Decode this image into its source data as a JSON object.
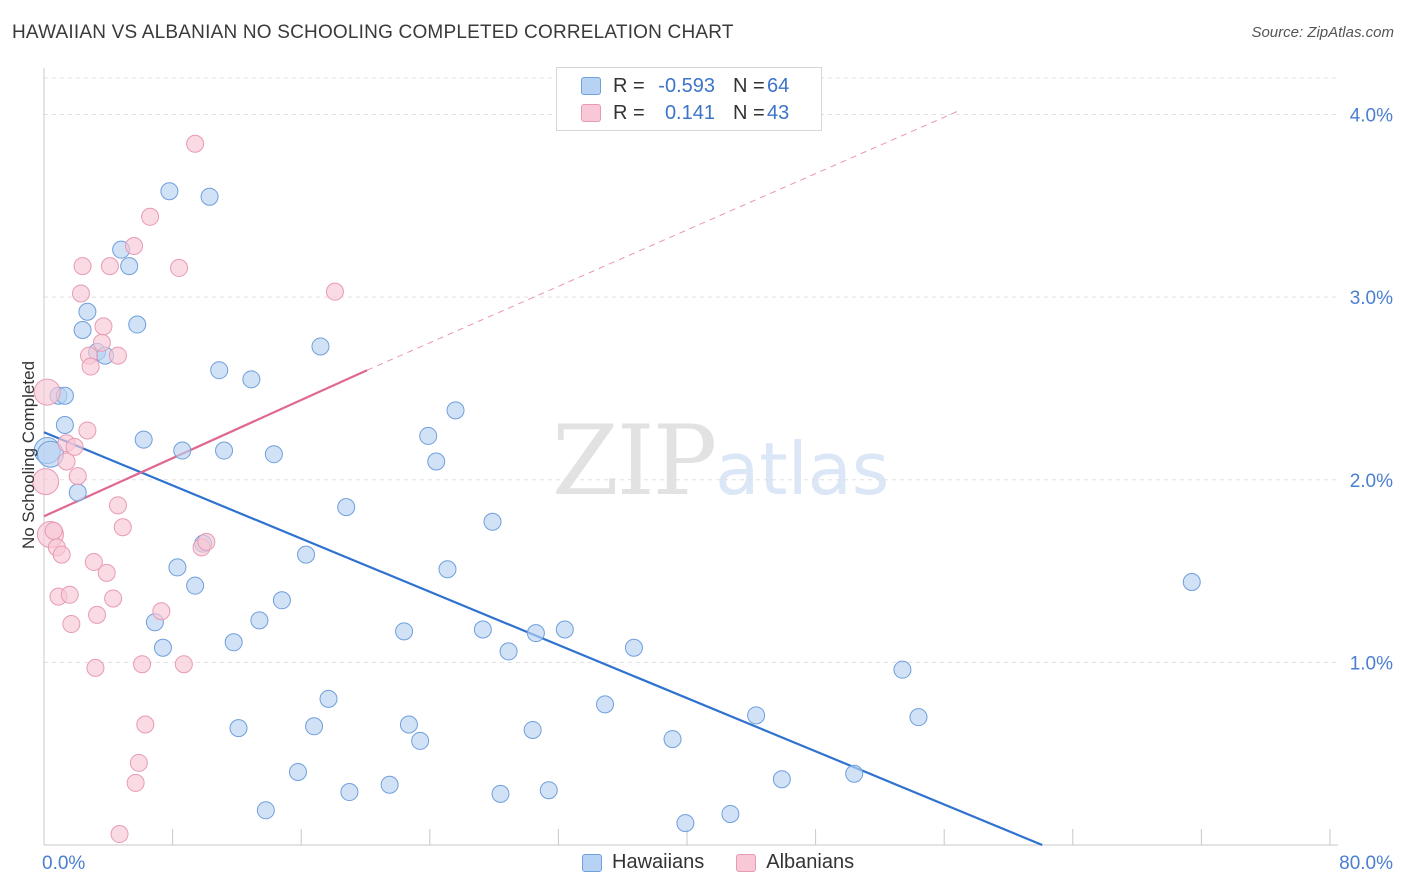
{
  "title": "HAWAIIAN VS ALBANIAN NO SCHOOLING COMPLETED CORRELATION CHART",
  "source": "Source: ZipAtlas.com",
  "watermark": {
    "zip": "ZIP",
    "atlas": "atlas"
  },
  "colors": {
    "hawaiians_fill": "#b8d2f3",
    "hawaiians_stroke": "#6f9fdc",
    "hawaiians_line": "#2f72d0",
    "albanians_fill": "#f8c8d6",
    "albanians_stroke": "#e89ab4",
    "albanians_line": "#e06890",
    "tick_label": "#4a7fd0",
    "grid": "#e0e0e0"
  },
  "legend": {
    "rows": [
      {
        "r_label": "R =",
        "r_value": "-0.593",
        "n_label": "N =",
        "n_value": "64"
      },
      {
        "r_label": "R =",
        "r_value": "0.141",
        "n_label": "N =",
        "n_value": "43"
      }
    ]
  },
  "bottom_legend": [
    "Hawaiians",
    "Albanians"
  ],
  "chart_data": {
    "type": "scatter",
    "xlabel": "",
    "ylabel": "No Schooling Completed",
    "xlim": [
      0,
      80
    ],
    "ylim": [
      0,
      4.2
    ],
    "x_tick_labels": [
      "0.0%",
      "80.0%"
    ],
    "y_ticks": [
      1.0,
      2.0,
      3.0,
      4.0
    ],
    "y_tick_labels": [
      "1.0%",
      "2.0%",
      "3.0%",
      "4.0%"
    ],
    "grid": true,
    "series": [
      {
        "name": "Hawaiians",
        "points": [
          [
            0.2,
            2.16
          ],
          [
            0.4,
            2.14
          ],
          [
            0.9,
            2.46
          ],
          [
            1.3,
            2.46
          ],
          [
            1.3,
            2.3
          ],
          [
            2.1,
            1.93
          ],
          [
            2.4,
            2.82
          ],
          [
            2.7,
            2.92
          ],
          [
            3.3,
            2.7
          ],
          [
            3.8,
            2.68
          ],
          [
            4.8,
            3.26
          ],
          [
            5.3,
            3.17
          ],
          [
            5.8,
            2.85
          ],
          [
            6.2,
            2.22
          ],
          [
            6.9,
            1.22
          ],
          [
            7.4,
            1.08
          ],
          [
            7.8,
            3.58
          ],
          [
            8.3,
            1.52
          ],
          [
            8.6,
            2.16
          ],
          [
            9.4,
            1.42
          ],
          [
            9.9,
            1.65
          ],
          [
            10.3,
            3.55
          ],
          [
            10.9,
            2.6
          ],
          [
            11.2,
            2.16
          ],
          [
            11.8,
            1.11
          ],
          [
            12.1,
            0.64
          ],
          [
            12.9,
            2.55
          ],
          [
            13.4,
            1.23
          ],
          [
            13.8,
            0.19
          ],
          [
            14.3,
            2.14
          ],
          [
            14.8,
            1.34
          ],
          [
            15.8,
            0.4
          ],
          [
            16.3,
            1.59
          ],
          [
            16.8,
            0.65
          ],
          [
            17.2,
            2.73
          ],
          [
            17.7,
            0.8
          ],
          [
            18.8,
            1.85
          ],
          [
            19.0,
            0.29
          ],
          [
            21.5,
            0.33
          ],
          [
            22.4,
            1.17
          ],
          [
            22.7,
            0.66
          ],
          [
            23.4,
            0.57
          ],
          [
            23.9,
            2.24
          ],
          [
            24.4,
            2.1
          ],
          [
            25.1,
            1.51
          ],
          [
            25.6,
            2.38
          ],
          [
            27.3,
            1.18
          ],
          [
            27.9,
            1.77
          ],
          [
            28.4,
            0.28
          ],
          [
            28.9,
            1.06
          ],
          [
            30.4,
            0.63
          ],
          [
            30.6,
            1.16
          ],
          [
            31.4,
            0.3
          ],
          [
            32.4,
            1.18
          ],
          [
            34.9,
            0.77
          ],
          [
            36.7,
            1.08
          ],
          [
            39.1,
            0.58
          ],
          [
            39.9,
            0.12
          ],
          [
            42.7,
            0.17
          ],
          [
            44.3,
            0.71
          ],
          [
            45.9,
            0.36
          ],
          [
            50.4,
            0.39
          ],
          [
            53.4,
            0.96
          ],
          [
            54.4,
            0.7
          ],
          [
            71.4,
            1.44
          ]
        ],
        "trend": {
          "x": [
            0,
            62.1
          ],
          "y": [
            2.26,
            0.0
          ]
        }
      },
      {
        "name": "Albanians",
        "points": [
          [
            0.1,
            1.99
          ],
          [
            0.2,
            2.48
          ],
          [
            0.4,
            1.7
          ],
          [
            0.6,
            1.72
          ],
          [
            0.8,
            1.63
          ],
          [
            0.9,
            1.36
          ],
          [
            1.1,
            1.59
          ],
          [
            1.4,
            2.2
          ],
          [
            1.4,
            2.1
          ],
          [
            1.6,
            1.37
          ],
          [
            1.7,
            1.21
          ],
          [
            1.9,
            2.18
          ],
          [
            2.1,
            2.02
          ],
          [
            2.3,
            3.02
          ],
          [
            2.4,
            3.17
          ],
          [
            2.7,
            2.27
          ],
          [
            2.8,
            2.68
          ],
          [
            2.9,
            2.62
          ],
          [
            3.1,
            1.55
          ],
          [
            3.2,
            0.97
          ],
          [
            3.3,
            1.26
          ],
          [
            3.6,
            2.75
          ],
          [
            3.7,
            2.84
          ],
          [
            3.9,
            1.49
          ],
          [
            4.1,
            3.17
          ],
          [
            4.3,
            1.35
          ],
          [
            4.6,
            1.86
          ],
          [
            4.6,
            2.68
          ],
          [
            4.7,
            0.06
          ],
          [
            4.9,
            1.74
          ],
          [
            5.6,
            3.28
          ],
          [
            5.7,
            0.34
          ],
          [
            5.9,
            0.45
          ],
          [
            6.1,
            0.99
          ],
          [
            6.3,
            0.66
          ],
          [
            6.6,
            3.44
          ],
          [
            7.3,
            1.28
          ],
          [
            8.4,
            3.16
          ],
          [
            8.7,
            0.99
          ],
          [
            9.4,
            3.84
          ],
          [
            9.8,
            1.63
          ],
          [
            10.1,
            1.66
          ],
          [
            18.1,
            3.03
          ]
        ],
        "trend": {
          "x": [
            0,
            20.1
          ],
          "y": [
            1.8,
            2.6
          ]
        },
        "trend_extension": {
          "x": [
            20.1,
            56.9
          ],
          "y": [
            2.6,
            4.02
          ]
        }
      }
    ]
  }
}
